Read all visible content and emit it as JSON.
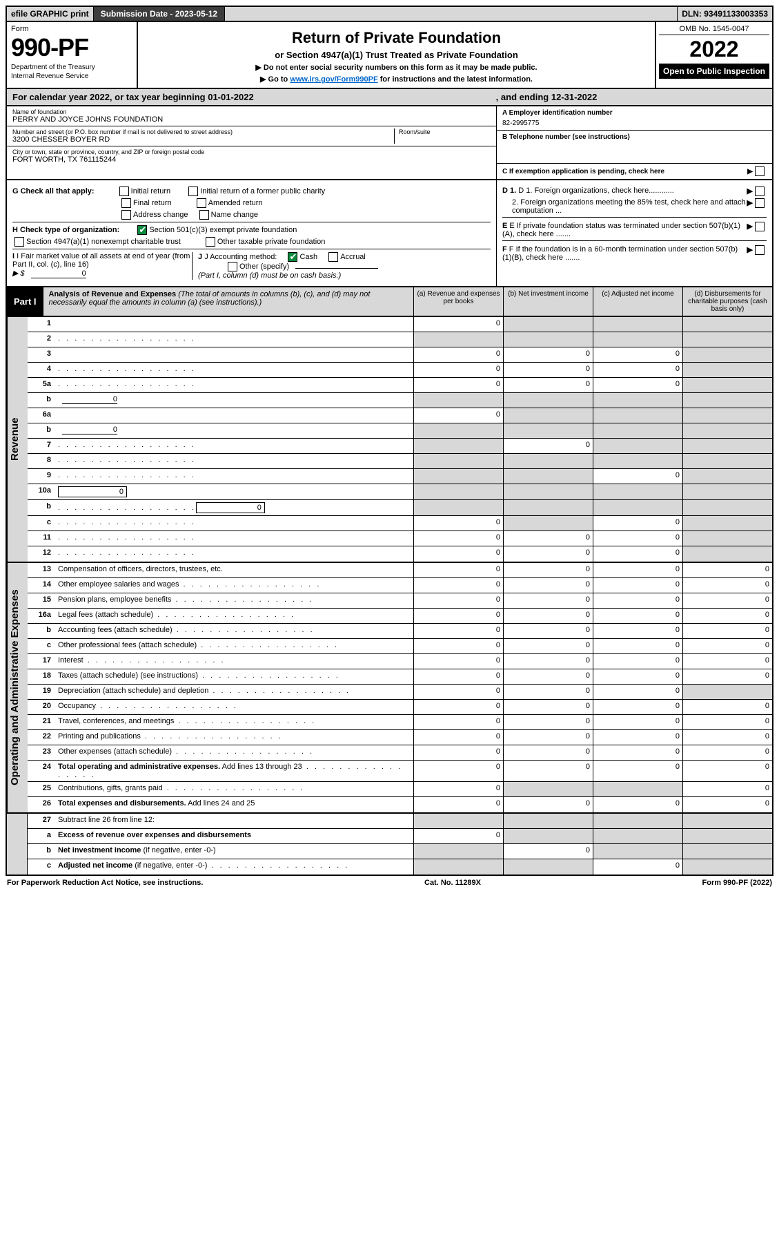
{
  "top_bar": {
    "efile": "efile GRAPHIC print",
    "submission_label": "Submission Date - 2023-05-12",
    "dln": "DLN: 93491133003353"
  },
  "header": {
    "form_word": "Form",
    "form_number": "990-PF",
    "dept1": "Department of the Treasury",
    "dept2": "Internal Revenue Service",
    "title": "Return of Private Foundation",
    "subtitle": "or Section 4947(a)(1) Trust Treated as Private Foundation",
    "instr1": "▶ Do not enter social security numbers on this form as it may be made public.",
    "instr2_pre": "▶ Go to ",
    "instr2_link": "www.irs.gov/Form990PF",
    "instr2_post": " for instructions and the latest information.",
    "omb": "OMB No. 1545-0047",
    "year": "2022",
    "open": "Open to Public Inspection"
  },
  "cal_year": {
    "text_a": "For calendar year 2022, or tax year beginning 01-01-2022",
    "text_b": ", and ending 12-31-2022"
  },
  "entity": {
    "name_lbl": "Name of foundation",
    "name": "PERRY AND JOYCE JOHNS FOUNDATION",
    "addr_lbl": "Number and street (or P.O. box number if mail is not delivered to street address)",
    "addr": "3200 CHESSER BOYER RD",
    "room_lbl": "Room/suite",
    "city_lbl": "City or town, state or province, country, and ZIP or foreign postal code",
    "city": "FORT WORTH, TX  761115244",
    "ein_lbl": "A Employer identification number",
    "ein": "82-2995775",
    "phone_lbl": "B Telephone number (see instructions)",
    "c_lbl": "C If exemption application is pending, check here"
  },
  "ghi": {
    "g_label": "G Check all that apply:",
    "g_opts": [
      "Initial return",
      "Initial return of a former public charity",
      "Final return",
      "Amended return",
      "Address change",
      "Name change"
    ],
    "h_label": "H Check type of organization:",
    "h_501c3": "Section 501(c)(3) exempt private foundation",
    "h_4947": "Section 4947(a)(1) nonexempt charitable trust",
    "h_other_tax": "Other taxable private foundation",
    "i_label": "I Fair market value of all assets at end of year (from Part II, col. (c), line 16)",
    "i_prefix": "▶ $",
    "i_value": "0",
    "j_label": "J Accounting method:",
    "j_cash": "Cash",
    "j_accrual": "Accrual",
    "j_other": "Other (specify)",
    "j_note": "(Part I, column (d) must be on cash basis.)",
    "d1": "D 1. Foreign organizations, check here............",
    "d2": "2. Foreign organizations meeting the 85% test, check here and attach computation ...",
    "e": "E  If private foundation status was terminated under section 507(b)(1)(A), check here .......",
    "f": "F  If the foundation is in a 60-month termination under section 507(b)(1)(B), check here ......."
  },
  "part1": {
    "label": "Part I",
    "title_b": "Analysis of Revenue and Expenses",
    "title_i": " (The total of amounts in columns (b), (c), and (d) may not necessarily equal the amounts in column (a) (see instructions).)",
    "col_a": "(a) Revenue and expenses per books",
    "col_b": "(b) Net investment income",
    "col_c": "(c) Adjusted net income",
    "col_d": "(d) Disbursements for charitable purposes (cash basis only)"
  },
  "revenue_rows": [
    {
      "n": "1",
      "d": "",
      "a": "0",
      "b": "",
      "c": "",
      "sb": true,
      "sc": true,
      "sd": true
    },
    {
      "n": "2",
      "d": "",
      "dots": true,
      "a": "",
      "b": "",
      "c": "",
      "sa": true,
      "sb": true,
      "sc": true,
      "sd": true
    },
    {
      "n": "3",
      "d": "",
      "a": "0",
      "b": "0",
      "c": "0",
      "sd": true
    },
    {
      "n": "4",
      "d": "",
      "dots": true,
      "a": "0",
      "b": "0",
      "c": "0",
      "sd": true
    },
    {
      "n": "5a",
      "d": "",
      "dots": true,
      "a": "0",
      "b": "0",
      "c": "0",
      "sd": true
    },
    {
      "n": "b",
      "d": "",
      "inline": "0",
      "a": "",
      "b": "",
      "c": "",
      "sa": true,
      "sb": true,
      "sc": true,
      "sd": true
    },
    {
      "n": "6a",
      "d": "",
      "a": "0",
      "b": "",
      "c": "",
      "sb": true,
      "sc": true,
      "sd": true
    },
    {
      "n": "b",
      "d": "",
      "inline": "0",
      "a": "",
      "b": "",
      "c": "",
      "sa": true,
      "sb": true,
      "sc": true,
      "sd": true
    },
    {
      "n": "7",
      "d": "",
      "dots": true,
      "a": "",
      "b": "0",
      "c": "",
      "sa": true,
      "sc": true,
      "sd": true
    },
    {
      "n": "8",
      "d": "",
      "dots": true,
      "a": "",
      "b": "",
      "c": "",
      "sa": true,
      "sb": true,
      "sc": true,
      "sd": true
    },
    {
      "n": "9",
      "d": "",
      "dots": true,
      "a": "",
      "b": "",
      "c": "0",
      "sa": true,
      "sb": true,
      "sd": true
    },
    {
      "n": "10a",
      "d": "",
      "box": "0",
      "a": "",
      "b": "",
      "c": "",
      "sa": true,
      "sb": true,
      "sc": true,
      "sd": true
    },
    {
      "n": "b",
      "d": "",
      "dots": true,
      "box": "0",
      "a": "",
      "b": "",
      "c": "",
      "sa": true,
      "sb": true,
      "sc": true,
      "sd": true
    },
    {
      "n": "c",
      "d": "",
      "dots": true,
      "a": "0",
      "b": "",
      "c": "0",
      "sb": true,
      "sd": true
    },
    {
      "n": "11",
      "d": "",
      "dots": true,
      "a": "0",
      "b": "0",
      "c": "0",
      "sd": true
    },
    {
      "n": "12",
      "d": "",
      "dots": true,
      "a": "0",
      "b": "0",
      "c": "0",
      "sd": true
    }
  ],
  "expense_rows": [
    {
      "n": "13",
      "d": "Compensation of officers, directors, trustees, etc.",
      "a": "0",
      "b": "0",
      "c": "0",
      "dd": "0"
    },
    {
      "n": "14",
      "d": "Other employee salaries and wages",
      "dots": true,
      "a": "0",
      "b": "0",
      "c": "0",
      "dd": "0"
    },
    {
      "n": "15",
      "d": "Pension plans, employee benefits",
      "dots": true,
      "a": "0",
      "b": "0",
      "c": "0",
      "dd": "0"
    },
    {
      "n": "16a",
      "d": "Legal fees (attach schedule)",
      "dots": true,
      "a": "0",
      "b": "0",
      "c": "0",
      "dd": "0"
    },
    {
      "n": "b",
      "d": "Accounting fees (attach schedule)",
      "dots": true,
      "a": "0",
      "b": "0",
      "c": "0",
      "dd": "0"
    },
    {
      "n": "c",
      "d": "Other professional fees (attach schedule)",
      "dots": true,
      "a": "0",
      "b": "0",
      "c": "0",
      "dd": "0"
    },
    {
      "n": "17",
      "d": "Interest",
      "dots": true,
      "a": "0",
      "b": "0",
      "c": "0",
      "dd": "0"
    },
    {
      "n": "18",
      "d": "Taxes (attach schedule) (see instructions)",
      "dots": true,
      "a": "0",
      "b": "0",
      "c": "0",
      "dd": "0"
    },
    {
      "n": "19",
      "d": "Depreciation (attach schedule) and depletion",
      "dots": true,
      "a": "0",
      "b": "0",
      "c": "0",
      "dd": "",
      "sd": true
    },
    {
      "n": "20",
      "d": "Occupancy",
      "dots": true,
      "a": "0",
      "b": "0",
      "c": "0",
      "dd": "0"
    },
    {
      "n": "21",
      "d": "Travel, conferences, and meetings",
      "dots": true,
      "a": "0",
      "b": "0",
      "c": "0",
      "dd": "0"
    },
    {
      "n": "22",
      "d": "Printing and publications",
      "dots": true,
      "a": "0",
      "b": "0",
      "c": "0",
      "dd": "0"
    },
    {
      "n": "23",
      "d": "Other expenses (attach schedule)",
      "dots": true,
      "a": "0",
      "b": "0",
      "c": "0",
      "dd": "0"
    },
    {
      "n": "24",
      "d": "<b>Total operating and administrative expenses.</b> Add lines 13 through 23",
      "dots": true,
      "a": "0",
      "b": "0",
      "c": "0",
      "dd": "0"
    },
    {
      "n": "25",
      "d": "Contributions, gifts, grants paid",
      "dots": true,
      "a": "0",
      "b": "",
      "c": "",
      "dd": "0",
      "sb": true,
      "sc": true
    },
    {
      "n": "26",
      "d": "<b>Total expenses and disbursements.</b> Add lines 24 and 25",
      "a": "0",
      "b": "0",
      "c": "0",
      "dd": "0"
    }
  ],
  "bottom_rows": [
    {
      "n": "27",
      "d": "Subtract line 26 from line 12:",
      "a": "",
      "b": "",
      "c": "",
      "dd": "",
      "sa": true,
      "sb": true,
      "sc": true,
      "sd": true
    },
    {
      "n": "a",
      "d": "<b>Excess of revenue over expenses and disbursements</b>",
      "a": "0",
      "b": "",
      "c": "",
      "dd": "",
      "sb": true,
      "sc": true,
      "sd": true
    },
    {
      "n": "b",
      "d": "<b>Net investment income</b> (if negative, enter -0-)",
      "a": "",
      "b": "0",
      "c": "",
      "dd": "",
      "sa": true,
      "sc": true,
      "sd": true
    },
    {
      "n": "c",
      "d": "<b>Adjusted net income</b> (if negative, enter -0-)",
      "dots": true,
      "a": "",
      "b": "",
      "c": "0",
      "dd": "",
      "sa": true,
      "sb": true,
      "sd": true
    }
  ],
  "footer": {
    "left": "For Paperwork Reduction Act Notice, see instructions.",
    "mid": "Cat. No. 11289X",
    "right": "Form 990-PF (2022)"
  },
  "side_labels": {
    "revenue": "Revenue",
    "expenses": "Operating and Administrative Expenses"
  }
}
